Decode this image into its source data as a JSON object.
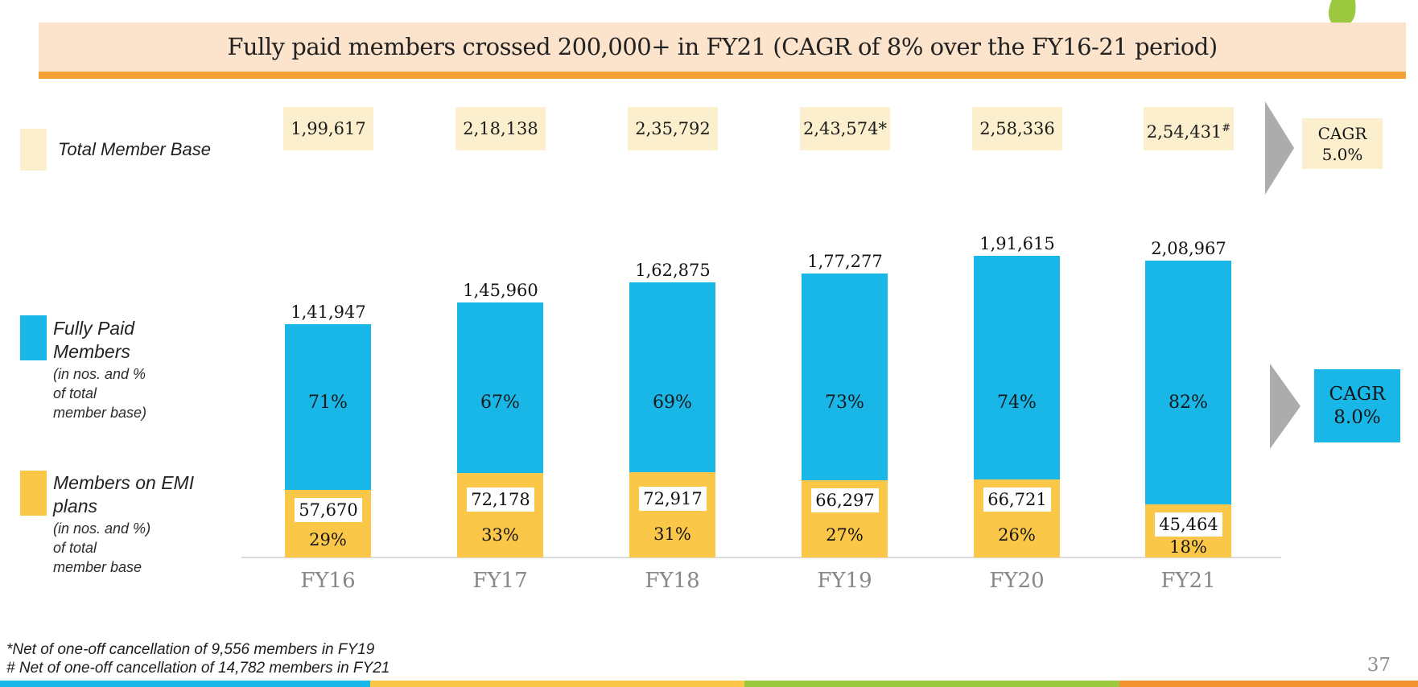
{
  "slide": {
    "title": "Fully paid members crossed 200,000+ in FY21 (CAGR of 8% over the FY16-21 period)",
    "page_number": "37",
    "footnotes": [
      "*Net of one-off cancellation of 9,556 members in FY19",
      "# Net of one-off cancellation of 14,782 members in FY21"
    ]
  },
  "total_row": {
    "label": "Total Member Base",
    "values": [
      "1,99,617",
      "2,18,138",
      "2,35,792",
      "2,43,574*",
      "2,58,336",
      "2,54,431"
    ],
    "superscripts": [
      "",
      "",
      "",
      "",
      "",
      "#"
    ],
    "cagr_label": "CAGR",
    "cagr_value": "5.0%"
  },
  "legends": {
    "fully_paid": {
      "title_lines": [
        "Fully Paid",
        "Members"
      ],
      "note_lines": [
        "(in  nos. and %",
        "of total",
        "member base)"
      ]
    },
    "emi": {
      "title_lines": [
        "Members on EMI",
        "plans"
      ],
      "note_lines": [
        "(in nos. and %)",
        "of total",
        "member base"
      ]
    }
  },
  "fully_paid_cagr": {
    "label": "CAGR",
    "value": "8.0%"
  },
  "chart_data": {
    "type": "bar",
    "stacked": true,
    "title": "Fully paid members crossed 200,000+ in FY21 (CAGR of 8% over the FY16-21 period)",
    "categories": [
      "FY16",
      "FY17",
      "FY18",
      "FY19",
      "FY20",
      "FY21"
    ],
    "series": [
      {
        "name": "Fully Paid Members (in nos. and % of total member base)",
        "color": "#19B7E8",
        "values": [
          141947,
          145960,
          162875,
          177277,
          191615,
          208967
        ],
        "value_labels": [
          "1,41,947",
          "1,45,960",
          "1,62,875",
          "1,77,277",
          "1,91,615",
          "2,08,967"
        ],
        "pct_labels": [
          "71%",
          "67%",
          "69%",
          "73%",
          "74%",
          "82%"
        ]
      },
      {
        "name": "Members on EMI plans (in nos. and %) of total member base",
        "color": "#FAC748",
        "values": [
          57670,
          72178,
          72917,
          66297,
          66721,
          45464
        ],
        "value_labels": [
          "57,670",
          "72,178",
          "72,917",
          "66,297",
          "66,721",
          "45,464"
        ],
        "pct_labels": [
          "29%",
          "33%",
          "31%",
          "27%",
          "26%",
          "18%"
        ]
      }
    ],
    "totals": [
      199617,
      218138,
      235792,
      243574,
      258336,
      254431
    ],
    "total_cagr_pct": "5.0%",
    "fully_paid_cagr_pct": "8.0%",
    "legend_position": "left",
    "grid": false,
    "ylim": [
      0,
      258336
    ]
  },
  "colors": {
    "cyan": "#19B7E8",
    "yellow": "#FAC748",
    "cream": "#FCEFCE",
    "banner_peach": "#FBE4CB",
    "orange": "#F5A235",
    "strip_orange": "#F2922E",
    "green": "#9CC93F",
    "arrow_gray": "#ACACAC",
    "axis_gray": "#DBDBDB",
    "label_gray": "#878787"
  },
  "footer_strip": {
    "colors": [
      "#19B7E8",
      "#FAC748",
      "#9CC93F",
      "#F2922E"
    ]
  }
}
